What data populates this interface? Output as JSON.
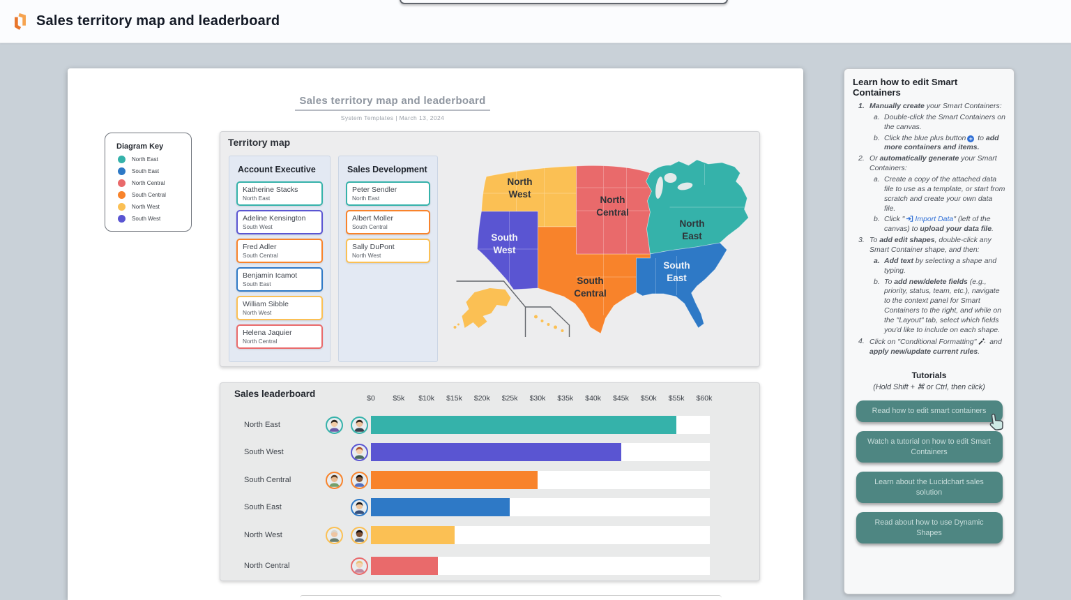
{
  "header": {
    "title": "Sales territory map and leaderboard",
    "logo": "lucid-logo"
  },
  "document": {
    "title": "Sales territory map and leaderboard",
    "subtitle": "System Templates  |  March 13, 2024"
  },
  "colors": {
    "teal": "#35b2aa",
    "blue": "#2e79c6",
    "red": "#e96a6b",
    "orange": "#f8832b",
    "yellow": "#fbc054",
    "purple": "#5a55d2",
    "button_teal": "#4e8682",
    "link_blue": "#2f6fd6",
    "container_gray": "#ededee"
  },
  "diagram_key": {
    "title": "Diagram Key",
    "items": [
      {
        "label": "North East",
        "color": "#35b2aa"
      },
      {
        "label": "South East",
        "color": "#2e79c6"
      },
      {
        "label": "North Central",
        "color": "#e96a6b"
      },
      {
        "label": "South Central",
        "color": "#f8832b"
      },
      {
        "label": "North West",
        "color": "#fbc054"
      },
      {
        "label": "South West",
        "color": "#5a55d2"
      }
    ]
  },
  "territory_map": {
    "title": "Territory map",
    "columns": [
      {
        "header": "Account Executive",
        "cards": [
          {
            "name": "Katherine Stacks",
            "region": "North East",
            "color": "#35b2aa"
          },
          {
            "name": "Adeline Kensington",
            "region": "South West",
            "color": "#5a55d2"
          },
          {
            "name": "Fred Adler",
            "region": "South Central",
            "color": "#f8832b"
          },
          {
            "name": "Benjamin Icamot",
            "region": "South East",
            "color": "#2e79c6"
          },
          {
            "name": "William Sibble",
            "region": "North West",
            "color": "#fbc054"
          },
          {
            "name": "Helena Jaquier",
            "region": "North Central",
            "color": "#e96a6b"
          }
        ]
      },
      {
        "header": "Sales Development",
        "cards": [
          {
            "name": "Peter Sendler",
            "region": "North East",
            "color": "#35b2aa"
          },
          {
            "name": "Albert Moller",
            "region": "South Central",
            "color": "#f8832b"
          },
          {
            "name": "Sally DuPont",
            "region": "North West",
            "color": "#fbc054"
          }
        ]
      }
    ],
    "regions": {
      "north_west": "#fbc054",
      "north_central": "#e96a6b",
      "north_east": "#35b2aa",
      "south_west": "#5a55d2",
      "south_central": "#f8832b",
      "south_east": "#2e79c6",
      "alaska_hawaii": "#fbc054"
    },
    "map_labels": {
      "nw": [
        "North",
        "West"
      ],
      "nc": [
        "North",
        "Central"
      ],
      "ne": [
        "North",
        "East"
      ],
      "sw": [
        "South",
        "West"
      ],
      "sc": [
        "South",
        "Central"
      ],
      "se": [
        "South",
        "East"
      ]
    }
  },
  "chart_data": {
    "type": "bar",
    "orientation": "horizontal",
    "title": "Sales leaderboard",
    "categories": [
      "North East",
      "South West",
      "South Central",
      "South East",
      "North West",
      "North Central"
    ],
    "values": [
      55000,
      45000,
      30000,
      25000,
      15000,
      12000
    ],
    "colors": [
      "#35b2aa",
      "#5a55d2",
      "#f8832b",
      "#2e79c6",
      "#fbc054",
      "#e96a6b"
    ],
    "x_ticks": [
      "$0",
      "$5k",
      "$10k",
      "$15k",
      "$20k",
      "$25k",
      "$30k",
      "$35k",
      "$40k",
      "$45k",
      "$50k",
      "$55k",
      "$60k"
    ],
    "xlim": [
      0,
      60000
    ],
    "grid": false,
    "avatars": [
      [
        "woman-dark-hair-glasses",
        "man-beard-glasses"
      ],
      [
        "woman-red-hair"
      ],
      [
        "man-brown-beard",
        "man-dark-skin"
      ],
      [
        "man-black-hair"
      ],
      [
        "man-white-beard",
        "woman-dark-skin"
      ],
      [
        "woman-blonde-hair"
      ]
    ]
  },
  "panel": {
    "title": "Learn how to edit Smart Containers",
    "markers": {
      "n1": "1.",
      "n2": "2.",
      "n3": "3.",
      "n4": "4.",
      "a": "a.",
      "b": "b."
    },
    "steps": {
      "s1": "<b>Manually create</b> your Smart Containers:",
      "s1a": "Double-click the Smart Containers on the canvas.",
      "s1b_pre": "Click the blue plus button",
      "s1b_post": " to <b>add more containers and items.</b>",
      "s2": "Or <b>automatically generate</b> your Smart Containers:",
      "s2a": "Create a copy of the attached data file to use as a template, or start from scratch and create your own data file.",
      "s2b_pre": "Click \"",
      "s2b_link": "Import Data",
      "s2b_post": "\" (left of the canvas) to <b>upload your data file</b>.",
      "s3": "To <b>add edit shapes</b>, double-click any Smart Container shape, and then:",
      "s3a": "<b>Add text</b> by selecting a shape and typing.",
      "s3b": "To <b>add new/delete fields</b> (e.g., priority, status, team, etc.), navigate to the context panel for Smart Containers to the right, and while on the \"Layout\" tab, select which fields you'd like to include on each shape.",
      "s4_pre": "Click on \"Conditional Formatting\"",
      "s4_post": " and <b>apply new/update current rules</b>."
    },
    "tutorials": {
      "title": "Tutorials",
      "hint": "(Hold Shift + ⌘ or Ctrl, then click)",
      "buttons": [
        "Read how to edit smart containers",
        "Watch a tutorial on how to edit Smart Containers",
        "Learn about the Lucidchart sales solution",
        "Read about how to use Dynamic Shapes"
      ]
    }
  }
}
